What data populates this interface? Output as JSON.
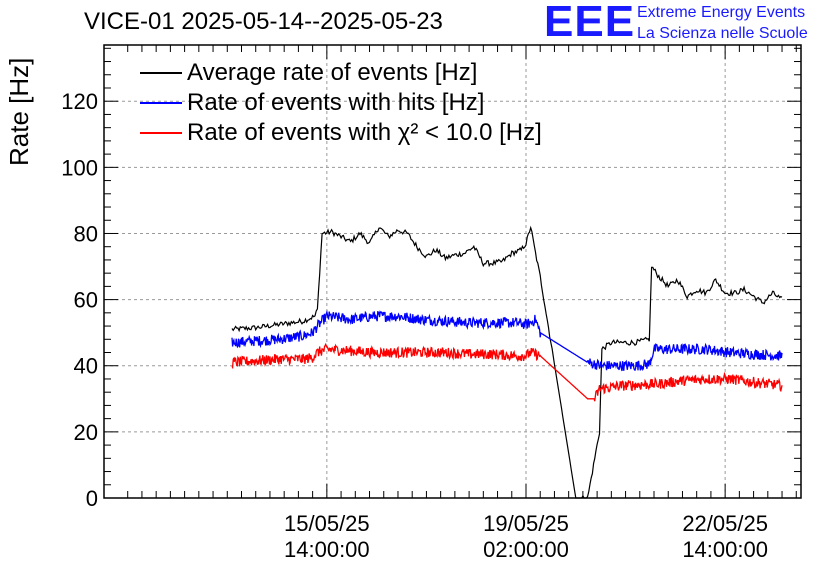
{
  "title": "VICE-01 2025-05-14--2025-05-23",
  "logo": {
    "text": "EEE",
    "line1": "Extreme Energy Events",
    "line2": "La Scienza nelle Scuole"
  },
  "chart_data": {
    "type": "line",
    "ylabel": "Rate [Hz]",
    "xlabel": "",
    "ylim": [
      0,
      137
    ],
    "xlim_hours": [
      -94,
      200
    ],
    "grid": true,
    "legend_position": "top-left",
    "y_ticks": [
      0,
      20,
      40,
      60,
      80,
      100,
      120
    ],
    "x_ticks": [
      {
        "hours": 0,
        "date": "15/05/25",
        "time": "14:00:00"
      },
      {
        "hours": 84,
        "date": "19/05/25",
        "time": "02:00:00"
      },
      {
        "hours": 168,
        "date": "22/05/25",
        "time": "14:00:00"
      }
    ],
    "series": [
      {
        "name": "Average rate of events [Hz]",
        "color": "#000000",
        "x": [
          -40,
          -30,
          -20,
          -10,
          -5,
          -4,
          -2,
          2,
          6,
          10,
          14,
          18,
          22,
          26,
          30,
          34,
          38,
          42,
          46,
          50,
          54,
          58,
          62,
          66,
          70,
          74,
          78,
          82,
          84,
          86,
          88,
          90,
          95,
          105,
          110,
          115,
          116,
          120,
          130,
          136,
          137,
          140,
          144,
          148,
          152,
          156,
          160,
          164,
          168,
          172,
          176,
          180,
          184,
          188,
          192
        ],
        "y": [
          51,
          51.5,
          52.5,
          53.5,
          55,
          57,
          80,
          80.5,
          79,
          77.5,
          80,
          77,
          82,
          79,
          81,
          80,
          76,
          73,
          75,
          72.5,
          73.5,
          74,
          76,
          71,
          71,
          71.5,
          74,
          75,
          77,
          82,
          74,
          67,
          45,
          0,
          0,
          20,
          45,
          47,
          47,
          48,
          70,
          67,
          64,
          66,
          61,
          63,
          62,
          66,
          62,
          62,
          63,
          61,
          59,
          62,
          60
        ]
      },
      {
        "name": "Rate of events with hits [Hz]",
        "color": "#0000ff",
        "x": [
          -40,
          -30,
          -20,
          -10,
          -6,
          -4,
          0,
          10,
          20,
          30,
          40,
          50,
          60,
          70,
          80,
          84,
          86,
          88,
          90,
          110,
          116,
          120,
          130,
          136,
          138,
          150,
          160,
          170,
          180,
          192
        ],
        "y": [
          47,
          47.5,
          48,
          49,
          50,
          52,
          55,
          54,
          55,
          55,
          54,
          53.5,
          53,
          53,
          53,
          52.5,
          53,
          54,
          50,
          41,
          40,
          40,
          40,
          40.5,
          45,
          45,
          45,
          44,
          43.5,
          43
        ]
      },
      {
        "name": "Rate of events with χ² < 10.0 [Hz]",
        "color": "#ff0000",
        "x": [
          -40,
          -30,
          -20,
          -10,
          -6,
          -4,
          0,
          10,
          20,
          30,
          40,
          50,
          60,
          70,
          80,
          84,
          86,
          88,
          90,
          110,
          113,
          115,
          125,
          140,
          150,
          160,
          170,
          180,
          192
        ],
        "y": [
          41,
          41.5,
          42,
          42,
          42.5,
          44,
          45,
          44.5,
          44,
          44,
          44,
          44,
          43.5,
          43.5,
          43,
          43,
          44,
          43.5,
          43,
          30,
          30,
          33,
          34,
          34.5,
          35.5,
          36,
          36,
          35,
          34
        ]
      }
    ]
  }
}
